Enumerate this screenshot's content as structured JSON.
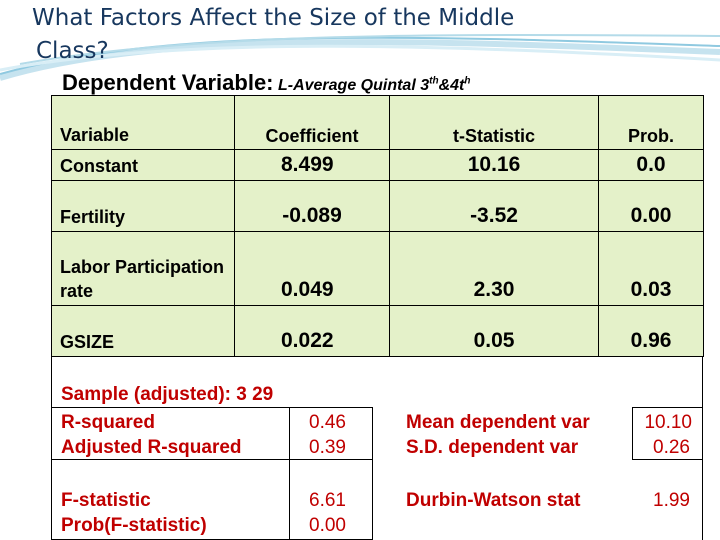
{
  "slide": {
    "title_line1": "What Factors Affect the Size of the Middle",
    "title_line2": "Class?",
    "dependent_label": "Dependent Variable:",
    "dependent_value_pre": "L-Average Quintal 3",
    "dependent_sup1": "th",
    "dependent_mid": "&4t",
    "dependent_sup2": "h"
  },
  "colors": {
    "title": "#17375e",
    "table_bg": "#e4f1c9",
    "stats_text": "#c00000"
  },
  "regression": {
    "headers": [
      "Variable",
      "Coefficient",
      "t-Statistic",
      "Prob."
    ],
    "rows": [
      {
        "variable": "Constant",
        "coefficient": "8.499",
        "t_statistic": "10.16",
        "prob": "0.0"
      },
      {
        "variable": "Fertility",
        "coefficient": "-0.089",
        "t_statistic": "-3.52",
        "prob": "0.00"
      },
      {
        "variable": "Labor Participation rate",
        "coefficient": "0.049",
        "t_statistic": "2.30",
        "prob": "0.03"
      },
      {
        "variable": "GSIZE",
        "coefficient": "0.022",
        "t_statistic": "0.05",
        "prob": "0.96"
      }
    ]
  },
  "stats": {
    "sample": "Sample (adjusted): 3 29",
    "r_squared_label": "R-squared",
    "r_squared": "0.46",
    "adj_r_squared_label": "Adjusted R-squared",
    "adj_r_squared": "0.39",
    "mean_dep_label": "Mean dependent var",
    "mean_dep": "10.10",
    "sd_dep_label": "S.D. dependent var",
    "sd_dep": "0.26",
    "f_stat_label": "F-statistic",
    "f_stat": "6.61",
    "prob_f_label": "Prob(F-statistic)",
    "prob_f": "0.00",
    "dw_label": "Durbin-Watson stat",
    "dw": "1.99"
  }
}
